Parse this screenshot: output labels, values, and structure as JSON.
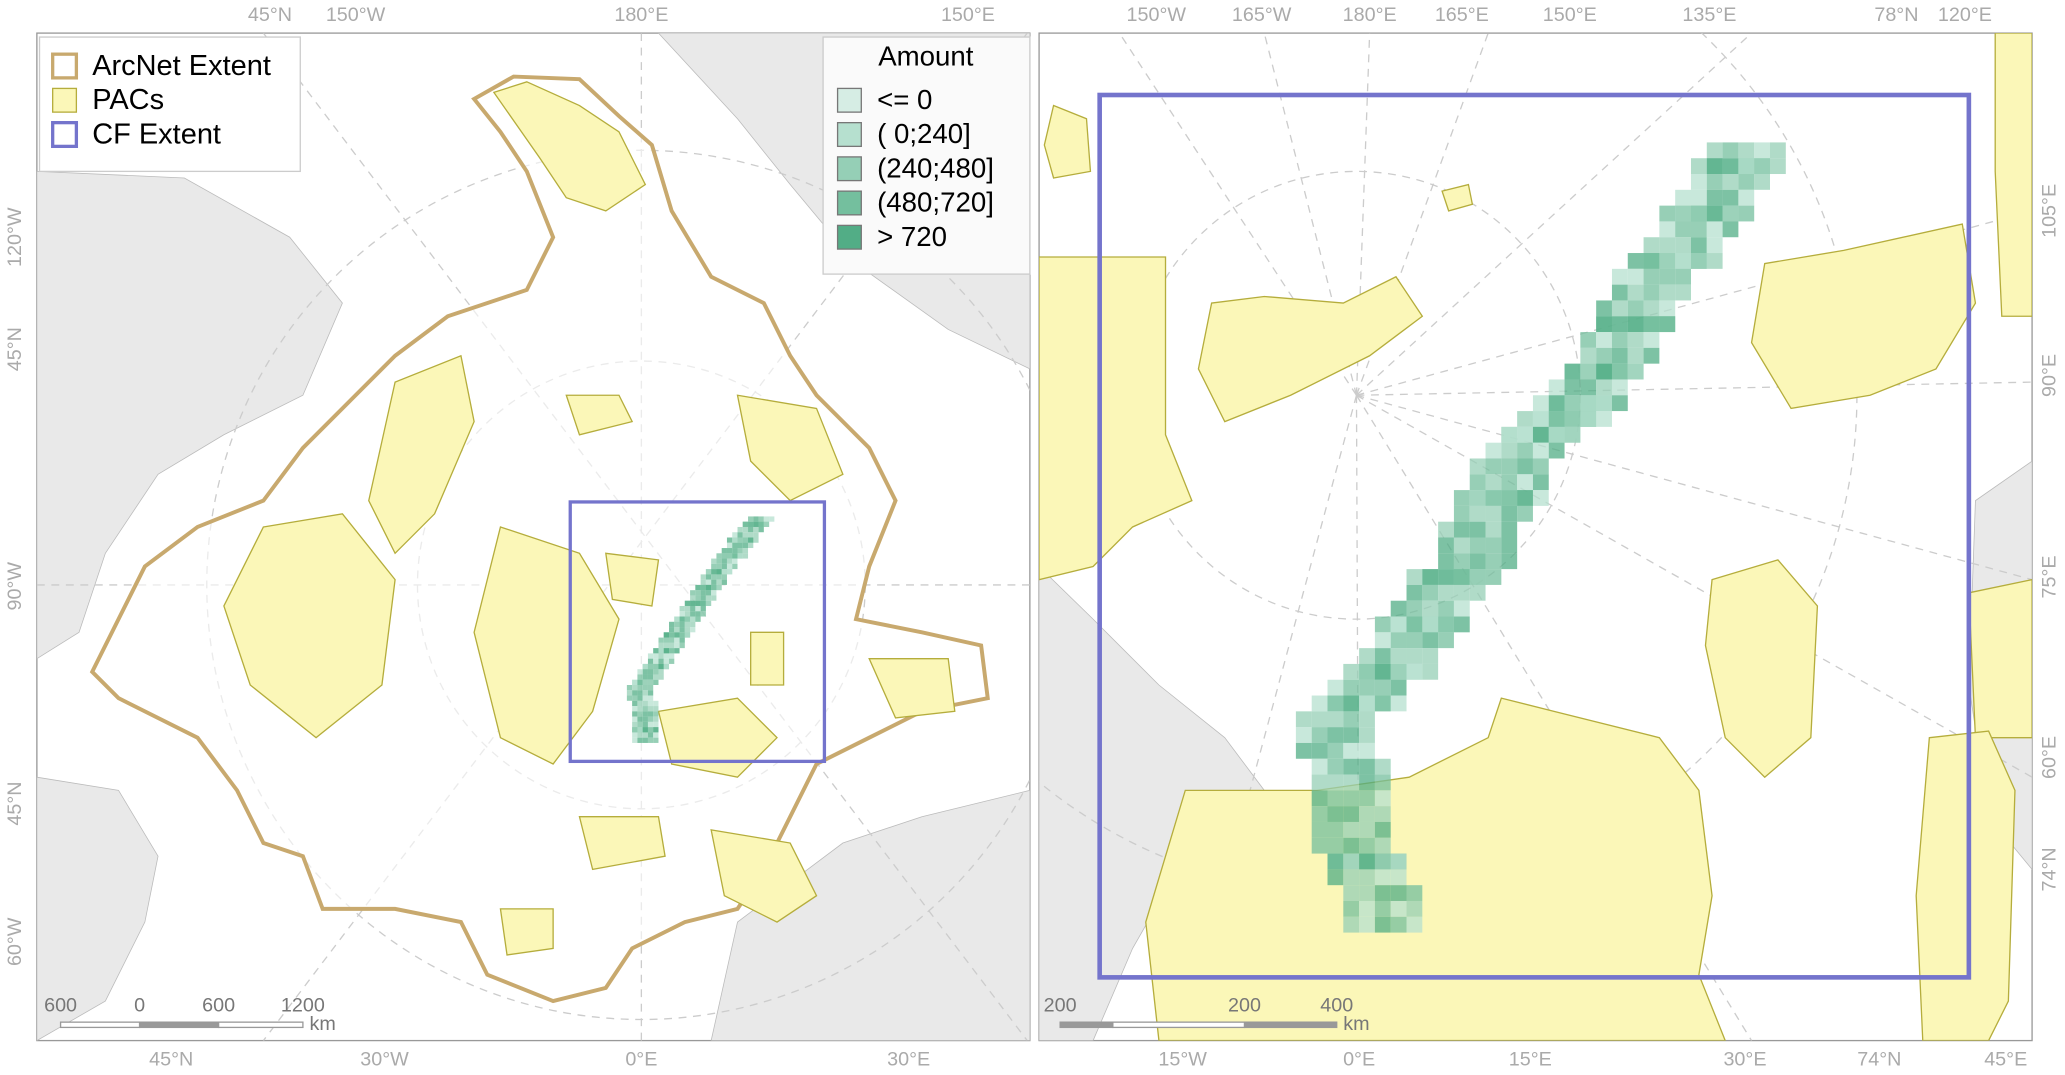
{
  "left_map": {
    "top_labels": [
      "45°N",
      "150°W",
      "180°E",
      "150°E"
    ],
    "side_labels": [
      "120°W",
      "45°N",
      "90°W",
      "45°N",
      "60°W"
    ],
    "bottom_labels": [
      "45°N",
      "30°W",
      "0°E",
      "30°E"
    ],
    "legend": [
      {
        "name": "ArcNet Extent",
        "color": "#c8a96e"
      },
      {
        "name": "PACs",
        "color": "#fbf7b8"
      },
      {
        "name": "CF Extent",
        "color": "#7474cc"
      }
    ],
    "amount_legend": {
      "title": "Amount",
      "classes": [
        {
          "label": "<=   0",
          "color": "#d6ede4"
        },
        {
          "label": "(  0;240]",
          "color": "#b6e0cf"
        },
        {
          "label": "(240;480]",
          "color": "#95cfb6"
        },
        {
          "label": "(480;720]",
          "color": "#74bf9e"
        },
        {
          "label": "> 720",
          "color": "#52ad86"
        }
      ]
    },
    "scale_bar": {
      "labels": [
        "600",
        "0",
        "600",
        "1200"
      ],
      "unit": "km"
    }
  },
  "right_map": {
    "top_labels": [
      "150°W",
      "165°W",
      "180°E",
      "165°E",
      "150°E",
      "135°E",
      "78°N",
      "120°E"
    ],
    "side_labels": [
      "105°E",
      "90°E",
      "75°E",
      "60°E",
      "74°N"
    ],
    "bottom_labels": [
      "15°W",
      "0°E",
      "15°E",
      "30°E",
      "74°N",
      "45°E"
    ],
    "scale_bar": {
      "labels": [
        "200",
        "200",
        "400"
      ],
      "unit": "km"
    }
  }
}
